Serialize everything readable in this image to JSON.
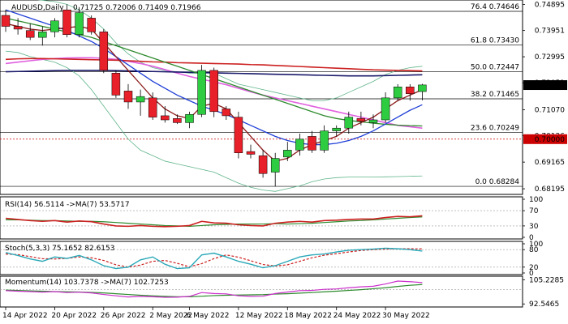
{
  "header": {
    "symbol": "AUDUSD,Daily",
    "ohlc": "0.71725 0.72006 0.71409 0.71966"
  },
  "colors": {
    "bull": "#2ecc40",
    "bear": "#e8202a",
    "sma_fast": "#8b1a1a",
    "sma_mid": "#1f3fd6",
    "sma_slow": "#2e8b2e",
    "sma_purple": "#e060e0",
    "sma_red": "#cc2020",
    "sma_navy": "#1a1a6b",
    "bollinger": "#5fb58a",
    "rsi": "#cc2020",
    "rsi_ma": "#2e8b2e",
    "stoch_k": "#2aa8b8",
    "stoch_d": "#cc2020",
    "mom": "#cc30cc",
    "mom_ma": "#2e8b2e",
    "level_line": "#000000",
    "price_badge_bg": "#ffffff",
    "red_level": "#cc0000"
  },
  "chart_data": {
    "type": "candlestick",
    "price_axis": {
      "ticks": [
        "0.74895",
        "0.73951",
        "0.72995",
        "0.72051",
        "0.71070",
        "0.70126",
        "0.69165",
        "0.68195"
      ],
      "ylim": [
        0.6805,
        0.75
      ]
    },
    "x_axis": {
      "ticks": [
        "14 Apr 2022",
        "20 Apr 2022",
        "26 Apr 2022",
        "2 May 2022",
        "6 May 2022",
        "12 May 2022",
        "18 May 2022",
        "24 May 2022",
        "30 May 2022"
      ]
    },
    "last_price": "0.71966",
    "red_level": {
      "value": 0.7,
      "label": "0.70000"
    },
    "fib_levels": [
      {
        "label": "76.4 0.74646",
        "value": 0.74646
      },
      {
        "label": "61.8 0.73430",
        "value": 0.7343
      },
      {
        "label": "50.0 0.72447",
        "value": 0.72447
      },
      {
        "label": "38.2 0.71465",
        "value": 0.71465
      },
      {
        "label": "23.6 0.70249",
        "value": 0.70249
      },
      {
        "label": "0.0 0.68284",
        "value": 0.68284
      }
    ],
    "candles": [
      {
        "o": 0.745,
        "h": 0.747,
        "l": 0.739,
        "c": 0.741
      },
      {
        "o": 0.741,
        "h": 0.744,
        "l": 0.738,
        "c": 0.74
      },
      {
        "o": 0.7395,
        "h": 0.742,
        "l": 0.736,
        "c": 0.737
      },
      {
        "o": 0.737,
        "h": 0.741,
        "l": 0.734,
        "c": 0.739
      },
      {
        "o": 0.739,
        "h": 0.744,
        "l": 0.737,
        "c": 0.743
      },
      {
        "o": 0.747,
        "h": 0.749,
        "l": 0.737,
        "c": 0.738
      },
      {
        "o": 0.738,
        "h": 0.748,
        "l": 0.737,
        "c": 0.746
      },
      {
        "o": 0.744,
        "h": 0.745,
        "l": 0.738,
        "c": 0.739
      },
      {
        "o": 0.739,
        "h": 0.74,
        "l": 0.724,
        "c": 0.725
      },
      {
        "o": 0.724,
        "h": 0.725,
        "l": 0.715,
        "c": 0.716
      },
      {
        "o": 0.7175,
        "h": 0.72,
        "l": 0.711,
        "c": 0.7135
      },
      {
        "o": 0.7135,
        "h": 0.718,
        "l": 0.7085,
        "c": 0.7155
      },
      {
        "o": 0.715,
        "h": 0.717,
        "l": 0.707,
        "c": 0.708
      },
      {
        "o": 0.7085,
        "h": 0.712,
        "l": 0.706,
        "c": 0.707
      },
      {
        "o": 0.7075,
        "h": 0.709,
        "l": 0.7055,
        "c": 0.706
      },
      {
        "o": 0.706,
        "h": 0.71,
        "l": 0.704,
        "c": 0.709
      },
      {
        "o": 0.709,
        "h": 0.727,
        "l": 0.708,
        "c": 0.725
      },
      {
        "o": 0.725,
        "h": 0.726,
        "l": 0.708,
        "c": 0.71
      },
      {
        "o": 0.711,
        "h": 0.712,
        "l": 0.707,
        "c": 0.7085
      },
      {
        "o": 0.708,
        "h": 0.71,
        "l": 0.693,
        "c": 0.695
      },
      {
        "o": 0.6955,
        "h": 0.698,
        "l": 0.693,
        "c": 0.6945
      },
      {
        "o": 0.694,
        "h": 0.696,
        "l": 0.686,
        "c": 0.6875
      },
      {
        "o": 0.688,
        "h": 0.695,
        "l": 0.6828,
        "c": 0.693
      },
      {
        "o": 0.6935,
        "h": 0.699,
        "l": 0.692,
        "c": 0.696
      },
      {
        "o": 0.696,
        "h": 0.702,
        "l": 0.694,
        "c": 0.7
      },
      {
        "o": 0.701,
        "h": 0.703,
        "l": 0.695,
        "c": 0.696
      },
      {
        "o": 0.696,
        "h": 0.705,
        "l": 0.695,
        "c": 0.703
      },
      {
        "o": 0.703,
        "h": 0.705,
        "l": 0.701,
        "c": 0.704
      },
      {
        "o": 0.704,
        "h": 0.71,
        "l": 0.702,
        "c": 0.708
      },
      {
        "o": 0.7075,
        "h": 0.71,
        "l": 0.705,
        "c": 0.7065
      },
      {
        "o": 0.706,
        "h": 0.709,
        "l": 0.704,
        "c": 0.707
      },
      {
        "o": 0.707,
        "h": 0.717,
        "l": 0.706,
        "c": 0.715
      },
      {
        "o": 0.715,
        "h": 0.72,
        "l": 0.714,
        "c": 0.719
      },
      {
        "o": 0.719,
        "h": 0.72,
        "l": 0.714,
        "c": 0.7165
      },
      {
        "o": 0.7173,
        "h": 0.7201,
        "l": 0.7141,
        "c": 0.7197
      }
    ],
    "overlays": [
      {
        "key": "sma_purple",
        "y": [
          0.7275,
          0.728,
          0.7285,
          0.729,
          0.7293,
          0.7295,
          0.7296,
          0.7296,
          0.7294,
          0.729,
          0.7283,
          0.7275,
          0.7265,
          0.7253,
          0.724,
          0.7228,
          0.7218,
          0.7208,
          0.7198,
          0.7185,
          0.7172,
          0.716,
          0.715,
          0.714,
          0.713,
          0.712,
          0.711,
          0.71,
          0.709,
          0.708,
          0.707,
          0.706,
          0.705,
          0.7045,
          0.704
        ]
      },
      {
        "key": "sma_red",
        "y": [
          0.729,
          0.7292,
          0.7293,
          0.7293,
          0.7292,
          0.7291,
          0.729,
          0.7289,
          0.7288,
          0.7287,
          0.7285,
          0.7283,
          0.7281,
          0.728,
          0.7278,
          0.7277,
          0.7276,
          0.7275,
          0.7274,
          0.7273,
          0.7271,
          0.727,
          0.7268,
          0.7266,
          0.7264,
          0.7262,
          0.726,
          0.7258,
          0.7256,
          0.7254,
          0.7252,
          0.7251,
          0.725,
          0.7249,
          0.7248
        ]
      },
      {
        "key": "sma_navy",
        "y": [
          0.7245,
          0.7246,
          0.7247,
          0.7248,
          0.7249,
          0.725,
          0.725,
          0.725,
          0.725,
          0.7249,
          0.7248,
          0.7247,
          0.7246,
          0.7245,
          0.7244,
          0.7243,
          0.7242,
          0.7241,
          0.724,
          0.7239,
          0.7238,
          0.7237,
          0.7236,
          0.7235,
          0.7234,
          0.7233,
          0.7232,
          0.7231,
          0.723,
          0.723,
          0.723,
          0.7231,
          0.7232,
          0.7233,
          0.7234
        ]
      },
      {
        "key": "sma_slow",
        "y": [
          0.744,
          0.743,
          0.742,
          0.741,
          0.74,
          0.739,
          0.738,
          0.737,
          0.7355,
          0.734,
          0.7325,
          0.731,
          0.7295,
          0.728,
          0.7265,
          0.725,
          0.7235,
          0.722,
          0.7205,
          0.719,
          0.7175,
          0.716,
          0.7145,
          0.713,
          0.7115,
          0.71,
          0.7085,
          0.7075,
          0.7068,
          0.7063,
          0.7058,
          0.7054,
          0.7051,
          0.7049,
          0.7048
        ]
      },
      {
        "key": "sma_mid",
        "y": [
          0.747,
          0.7455,
          0.744,
          0.7425,
          0.741,
          0.7395,
          0.7375,
          0.7355,
          0.733,
          0.73,
          0.727,
          0.724,
          0.721,
          0.7185,
          0.716,
          0.714,
          0.712,
          0.7105,
          0.709,
          0.707,
          0.705,
          0.703,
          0.701,
          0.6995,
          0.6985,
          0.698,
          0.698,
          0.6985,
          0.6995,
          0.701,
          0.703,
          0.7055,
          0.708,
          0.7105,
          0.7125
        ]
      },
      {
        "key": "sma_fast",
        "y": [
          0.742,
          0.741,
          0.74,
          0.7395,
          0.74,
          0.7405,
          0.741,
          0.74,
          0.735,
          0.73,
          0.725,
          0.72,
          0.715,
          0.711,
          0.7085,
          0.7075,
          0.712,
          0.713,
          0.711,
          0.706,
          0.701,
          0.696,
          0.692,
          0.693,
          0.696,
          0.698,
          0.6995,
          0.701,
          0.704,
          0.706,
          0.708,
          0.711,
          0.714,
          0.716,
          0.718
        ]
      }
    ],
    "bollinger": {
      "upper": [
        0.752,
        0.7515,
        0.751,
        0.7505,
        0.75,
        0.749,
        0.747,
        0.744,
        0.74,
        0.735,
        0.731,
        0.728,
        0.726,
        0.725,
        0.7245,
        0.724,
        0.724,
        0.724,
        0.722,
        0.72,
        0.719,
        0.718,
        0.717,
        0.716,
        0.715,
        0.714,
        0.714,
        0.715,
        0.717,
        0.719,
        0.721,
        0.7235,
        0.725,
        0.726,
        0.7265
      ],
      "lower": [
        0.732,
        0.7315,
        0.73,
        0.729,
        0.728,
        0.726,
        0.723,
        0.718,
        0.712,
        0.706,
        0.7,
        0.696,
        0.694,
        0.692,
        0.691,
        0.69,
        0.689,
        0.688,
        0.686,
        0.684,
        0.6825,
        0.6815,
        0.681,
        0.682,
        0.683,
        0.6845,
        0.6855,
        0.686,
        0.6862,
        0.6862,
        0.6862,
        0.6863,
        0.6864,
        0.6865,
        0.6866
      ]
    },
    "rsi": {
      "label": "RSI(14) 56.5114  ->MA(7) 53.5717",
      "ticks": [
        "100",
        "70",
        "30",
        "0"
      ],
      "ylim": [
        0,
        100
      ],
      "rsi": [
        50,
        47,
        44,
        42,
        44,
        40,
        43,
        41,
        35,
        30,
        29,
        31,
        29,
        28,
        29,
        31,
        42,
        38,
        37,
        33,
        31,
        30,
        37,
        40,
        42,
        40,
        44,
        45,
        47,
        48,
        48,
        52,
        55,
        54,
        56.5
      ],
      "ma": [
        46,
        46,
        45,
        44,
        44,
        43,
        42,
        42,
        41,
        39,
        37,
        35,
        33,
        31,
        30,
        29,
        31,
        33,
        34,
        35,
        35,
        35,
        36,
        35,
        36,
        37,
        39,
        41,
        43,
        44,
        46,
        48,
        50,
        52,
        53.6
      ]
    },
    "stoch": {
      "label": "Stoch(5,3,3) 75.1652 82.6153",
      "ticks": [
        "100",
        "80",
        "20",
        "0"
      ],
      "ylim": [
        0,
        100
      ],
      "k": [
        70,
        60,
        48,
        40,
        55,
        50,
        60,
        45,
        25,
        15,
        20,
        45,
        55,
        30,
        15,
        18,
        62,
        68,
        55,
        40,
        30,
        18,
        25,
        40,
        55,
        62,
        65,
        72,
        78,
        80,
        82,
        85,
        83,
        80,
        75.2
      ],
      "d": [
        65,
        63,
        56,
        49,
        48,
        50,
        55,
        52,
        43,
        28,
        20,
        27,
        40,
        43,
        33,
        21,
        32,
        49,
        62,
        54,
        42,
        29,
        24,
        28,
        40,
        52,
        61,
        66,
        72,
        77,
        80,
        82,
        83,
        83,
        82.6
      ]
    },
    "momentum": {
      "label": "Momentum(14) 103.7378  ->MA(7) 102.7253",
      "ticks": [
        "105.2285",
        "92.5465"
      ],
      "ylim": [
        91.8,
        106.2
      ],
      "mom": [
        99.5,
        99.2,
        99.0,
        98.7,
        99.0,
        98.5,
        98.7,
        98.3,
        97.5,
        96.8,
        96.2,
        96.5,
        96.3,
        96.0,
        96.1,
        96.5,
        98.5,
        98.0,
        97.8,
        96.8,
        96.5,
        96.6,
        98.0,
        98.8,
        99.5,
        99.6,
        100.2,
        100.4,
        101.0,
        101.5,
        101.8,
        103.0,
        104.5,
        104.2,
        103.7
      ],
      "ma": [
        99.8,
        99.6,
        99.4,
        99.2,
        99.0,
        98.9,
        98.8,
        98.6,
        98.3,
        97.9,
        97.5,
        97.1,
        96.8,
        96.5,
        96.3,
        96.3,
        96.6,
        96.9,
        97.1,
        97.2,
        97.3,
        97.4,
        97.7,
        97.9,
        98.2,
        98.5,
        98.9,
        99.2,
        99.6,
        100.0,
        100.5,
        101.0,
        101.7,
        102.3,
        102.7
      ]
    }
  }
}
